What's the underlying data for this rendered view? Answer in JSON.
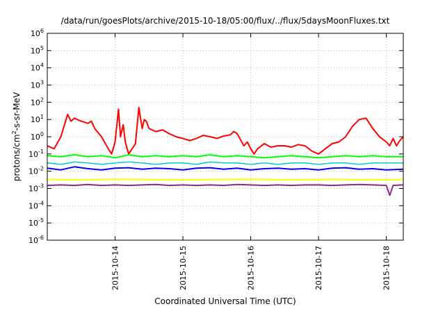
{
  "chart_data": {
    "type": "line",
    "title": "/data/run/goesPlots/archive/2015-10-18/05:00/flux/../flux/5daysMoonFluxes.txt",
    "xlabel": "Coordinated Universal Time (UTC)",
    "ylabel_pre": "protons/cm",
    "ylabel_sup": "2",
    "ylabel_post": "-s-sr-MeV",
    "y_scale": "log",
    "ylim_exp": [
      -6,
      6
    ],
    "y_tick_base": "10",
    "y_tick_exponents": [
      "-6",
      "-5",
      "-4",
      "-3",
      "-2",
      "-1",
      "0",
      "1",
      "2",
      "3",
      "4",
      "5",
      "6"
    ],
    "x_tick_labels": [
      "2015-10-14",
      "2015-10-15",
      "2015-10-16",
      "2015-10-17",
      "2015-10-18"
    ],
    "xlim_days": [
      13.0,
      18.25
    ],
    "x_tick_days": [
      14,
      15,
      16,
      17,
      18
    ],
    "grid": true,
    "legend": "none",
    "series": [
      {
        "color": "#ff0000",
        "width": 2,
        "x": [
          13.0,
          13.1,
          13.2,
          13.3,
          13.35,
          13.4,
          13.5,
          13.6,
          13.65,
          13.7,
          13.8,
          13.9,
          13.95,
          14.0,
          14.05,
          14.08,
          14.12,
          14.15,
          14.2,
          14.25,
          14.3,
          14.35,
          14.4,
          14.43,
          14.46,
          14.5,
          14.6,
          14.7,
          14.8,
          14.9,
          15.0,
          15.1,
          15.2,
          15.3,
          15.4,
          15.5,
          15.6,
          15.7,
          15.75,
          15.8,
          15.9,
          15.95,
          16.0,
          16.05,
          16.1,
          16.2,
          16.3,
          16.4,
          16.5,
          16.6,
          16.7,
          16.8,
          16.9,
          17.0,
          17.1,
          17.2,
          17.3,
          17.4,
          17.5,
          17.6,
          17.7,
          17.8,
          17.9,
          18.0,
          18.05,
          18.1,
          18.15,
          18.2,
          18.25
        ],
        "y": [
          0.3,
          0.2,
          1.0,
          20,
          8,
          12,
          8,
          6,
          8,
          3,
          1.0,
          0.2,
          0.1,
          0.5,
          40,
          1.0,
          5,
          0.5,
          0.1,
          0.2,
          0.4,
          50,
          3,
          10,
          8,
          3,
          2,
          2.5,
          1.5,
          1.0,
          0.8,
          0.6,
          0.8,
          1.2,
          1.0,
          0.8,
          1.1,
          1.3,
          2,
          1.5,
          0.3,
          0.5,
          0.2,
          0.1,
          0.2,
          0.4,
          0.25,
          0.3,
          0.3,
          0.25,
          0.35,
          0.3,
          0.15,
          0.1,
          0.2,
          0.4,
          0.5,
          1.0,
          4,
          10,
          12,
          3,
          1.0,
          0.5,
          0.3,
          0.8,
          0.3,
          0.6,
          1.0
        ]
      },
      {
        "color": "#00ff00",
        "width": 2,
        "x": [
          13.0,
          13.2,
          13.4,
          13.6,
          13.8,
          14.0,
          14.2,
          14.4,
          14.6,
          14.8,
          15.0,
          15.2,
          15.4,
          15.6,
          15.8,
          16.0,
          16.2,
          16.4,
          16.6,
          16.8,
          17.0,
          17.2,
          17.4,
          17.6,
          17.8,
          18.0,
          18.25
        ],
        "y": [
          0.08,
          0.07,
          0.09,
          0.07,
          0.08,
          0.06,
          0.09,
          0.07,
          0.08,
          0.07,
          0.08,
          0.07,
          0.09,
          0.07,
          0.08,
          0.07,
          0.06,
          0.07,
          0.08,
          0.07,
          0.06,
          0.07,
          0.08,
          0.07,
          0.08,
          0.07,
          0.07
        ]
      },
      {
        "color": "#00cccc",
        "width": 1.5,
        "x": [
          13.0,
          13.2,
          13.4,
          13.6,
          13.8,
          14.0,
          14.2,
          14.4,
          14.6,
          14.8,
          15.0,
          15.2,
          15.4,
          15.6,
          15.8,
          16.0,
          16.2,
          16.4,
          16.6,
          16.8,
          17.0,
          17.2,
          17.4,
          17.6,
          17.8,
          18.0,
          18.25
        ],
        "y": [
          0.03,
          0.025,
          0.035,
          0.03,
          0.025,
          0.03,
          0.035,
          0.03,
          0.025,
          0.03,
          0.03,
          0.025,
          0.035,
          0.03,
          0.03,
          0.025,
          0.03,
          0.025,
          0.03,
          0.03,
          0.025,
          0.03,
          0.03,
          0.025,
          0.03,
          0.03,
          0.03
        ]
      },
      {
        "color": "#0000ff",
        "width": 2,
        "x": [
          13.0,
          13.2,
          13.4,
          13.6,
          13.8,
          14.0,
          14.2,
          14.4,
          14.6,
          14.8,
          15.0,
          15.2,
          15.4,
          15.6,
          15.8,
          16.0,
          16.2,
          16.4,
          16.6,
          16.8,
          17.0,
          17.2,
          17.4,
          17.6,
          17.8,
          18.0,
          18.25
        ],
        "y": [
          0.015,
          0.012,
          0.018,
          0.014,
          0.012,
          0.015,
          0.016,
          0.013,
          0.015,
          0.014,
          0.012,
          0.015,
          0.016,
          0.013,
          0.015,
          0.012,
          0.014,
          0.015,
          0.013,
          0.014,
          0.012,
          0.015,
          0.016,
          0.013,
          0.014,
          0.012,
          0.013
        ]
      },
      {
        "color": "#ffff00",
        "width": 2,
        "x": [
          13.0,
          13.5,
          14.0,
          14.5,
          15.0,
          15.5,
          16.0,
          16.5,
          17.0,
          17.5,
          18.0,
          18.25
        ],
        "y": [
          0.0033,
          0.0032,
          0.0034,
          0.0033,
          0.0032,
          0.0033,
          0.0034,
          0.0032,
          0.0033,
          0.0033,
          0.0032,
          0.0033
        ]
      },
      {
        "color": "#8b2a8b",
        "width": 2,
        "x": [
          13.0,
          13.2,
          13.4,
          13.6,
          13.8,
          14.0,
          14.2,
          14.4,
          14.6,
          14.8,
          15.0,
          15.2,
          15.4,
          15.6,
          15.8,
          16.0,
          16.2,
          16.4,
          16.6,
          16.8,
          17.0,
          17.2,
          17.4,
          17.6,
          17.8,
          18.0,
          18.05,
          18.1,
          18.25
        ],
        "y": [
          0.0015,
          0.0016,
          0.0015,
          0.0017,
          0.0015,
          0.0016,
          0.0015,
          0.0016,
          0.0017,
          0.0015,
          0.0016,
          0.0015,
          0.0016,
          0.0015,
          0.0017,
          0.0016,
          0.0015,
          0.0016,
          0.0015,
          0.0016,
          0.0016,
          0.0015,
          0.0016,
          0.0017,
          0.0016,
          0.0015,
          0.0004,
          0.0015,
          0.0016
        ]
      }
    ]
  }
}
